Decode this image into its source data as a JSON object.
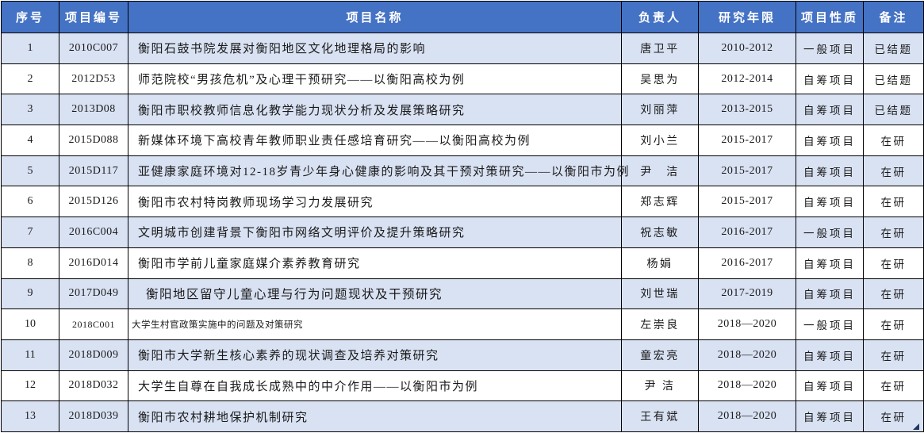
{
  "table": {
    "columns": [
      {
        "key": "index",
        "label": "序号"
      },
      {
        "key": "code",
        "label": "项目编号"
      },
      {
        "key": "name",
        "label": "项目名称"
      },
      {
        "key": "leader",
        "label": "负责人"
      },
      {
        "key": "years",
        "label": "研究年限"
      },
      {
        "key": "nature",
        "label": "项目性质"
      },
      {
        "key": "remark",
        "label": "备注"
      }
    ],
    "rows": [
      [
        "1",
        "2010C007",
        "衡阳石鼓书院发展对衡阳地区文化地理格局的影响",
        "唐卫平",
        "2010-2012",
        "一般项目",
        "已结题"
      ],
      [
        "2",
        "2012D53",
        "师范院校“男孩危机”及心理干预研究——以衡阳高校为例",
        "吴思为",
        "2012-2014",
        "自筹项目",
        "已结题"
      ],
      [
        "3",
        "2013D08",
        "衡阳市职校教师信息化教学能力现状分析及发展策略研究",
        "刘丽萍",
        "2013-2015",
        "自筹项目",
        "已结题"
      ],
      [
        "4",
        "2015D088",
        "新媒体环境下高校青年教师职业责任感培育研究——以衡阳高校为例",
        "刘小兰",
        "2015-2017",
        "自筹项目",
        "在研"
      ],
      [
        "5",
        "2015D117",
        "亚健康家庭环境对12-18岁青少年身心健康的影响及其干预对策研究——以衡阳市为例",
        "尹　洁",
        "2015-2017",
        "自筹项目",
        "在研"
      ],
      [
        "6",
        "2015D126",
        "衡阳市农村特岗教师现场学习力发展研究",
        "郑志辉",
        "2015-2017",
        "自筹项目",
        "在研"
      ],
      [
        "7",
        "2016C004",
        "文明城市创建背景下衡阳市网络文明评价及提升策略研究",
        "祝志敏",
        "2016-2017",
        "一般项目",
        "在研"
      ],
      [
        "8",
        "2016D014",
        "衡阳市学前儿童家庭媒介素养教育研究",
        "杨娟",
        "2016-2017",
        "自筹项目",
        "在研"
      ],
      [
        "9",
        "2017D049",
        "衡阳地区留守儿童心理与行为问题现状及干预研究",
        "刘世瑞",
        "2017-2019",
        "自筹项目",
        "在研"
      ],
      [
        "10",
        "2018C001",
        "大学生村官政策实施中的问题及对策研究",
        "左崇良",
        "2018—2020",
        "一般项目",
        "在研"
      ],
      [
        "11",
        "2018D009",
        "衡阳市大学新生核心素养的现状调查及培养对策研究",
        "童宏亮",
        "2018—2020",
        "自筹项目",
        "在研"
      ],
      [
        "12",
        "2018D032",
        "大学生自尊在自我成长成熟中的中介作用——以衡阳市为例",
        "尹 洁",
        "2018—2020",
        "自筹项目",
        "在研"
      ],
      [
        "13",
        "2018D039",
        "衡阳市农村耕地保护机制研究",
        "王有斌",
        "2018—2020",
        "自筹项目",
        "在研"
      ]
    ]
  },
  "colors": {
    "header_bg": "#4472C4",
    "header_text": "#FFFFFF",
    "band_bg": "#D9E2F3",
    "body_text": "#1A1A1A",
    "border": "#000000",
    "handle": "#1F3864"
  },
  "icons": {
    "bottom_right": "table-resize-handle-icon"
  }
}
